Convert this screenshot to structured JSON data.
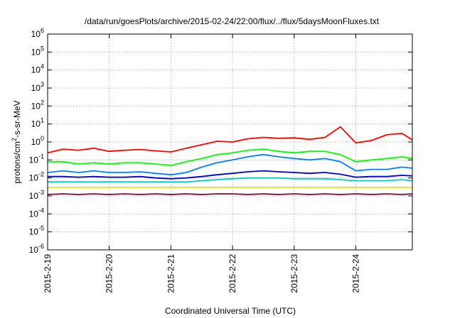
{
  "chart_data": {
    "type": "line",
    "title": "/data/run/goesPlots/archive/2015-02-24/22:00/flux/../flux/5daysMoonFluxes.txt",
    "xlabel": "Coordinated Universal Time (UTC)",
    "ylabel": "protons/cm²-s-sr-MeV",
    "ylabel_parts": {
      "pre": "protons/cm",
      "sup": "2",
      "post": "-s-sr-MeV"
    },
    "yscale": "log",
    "ylim": [
      -6,
      6
    ],
    "yticks": [
      {
        "exp": -6,
        "base": "10",
        "sup": "-6"
      },
      {
        "exp": -5,
        "base": "10",
        "sup": "-5"
      },
      {
        "exp": -4,
        "base": "10",
        "sup": "-4"
      },
      {
        "exp": -3,
        "base": "10",
        "sup": "-3"
      },
      {
        "exp": -2,
        "base": "10",
        "sup": "-2"
      },
      {
        "exp": -1,
        "base": "10",
        "sup": "-1"
      },
      {
        "exp": 0,
        "base": "10",
        "sup": "0"
      },
      {
        "exp": 1,
        "base": "10",
        "sup": "1"
      },
      {
        "exp": 2,
        "base": "10",
        "sup": "2"
      },
      {
        "exp": 3,
        "base": "10",
        "sup": "3"
      },
      {
        "exp": 4,
        "base": "10",
        "sup": "4"
      },
      {
        "exp": 5,
        "base": "10",
        "sup": "5"
      },
      {
        "exp": 6,
        "base": "10",
        "sup": "6"
      }
    ],
    "xlim": [
      "2015-02-19 00:00",
      "2015-02-24 22:00"
    ],
    "xticks": [
      {
        "value": "2015-02-19 00:00",
        "label": "2015-2-19"
      },
      {
        "value": "2015-02-20 00:00",
        "label": "2015-2-20"
      },
      {
        "value": "2015-02-21 00:00",
        "label": "2015-2-21"
      },
      {
        "value": "2015-02-22 00:00",
        "label": "2015-2-22"
      },
      {
        "value": "2015-02-23 00:00",
        "label": "2015-2-23"
      },
      {
        "value": "2015-02-24 00:00",
        "label": "2015-2-24"
      }
    ],
    "grid": true,
    "legend": "none",
    "x": [
      "2015-02-19 00:00",
      "2015-02-19 06:00",
      "2015-02-19 12:00",
      "2015-02-19 18:00",
      "2015-02-20 00:00",
      "2015-02-20 06:00",
      "2015-02-20 12:00",
      "2015-02-20 18:00",
      "2015-02-21 00:00",
      "2015-02-21 06:00",
      "2015-02-21 12:00",
      "2015-02-21 18:00",
      "2015-02-22 00:00",
      "2015-02-22 06:00",
      "2015-02-22 12:00",
      "2015-02-22 18:00",
      "2015-02-23 00:00",
      "2015-02-23 06:00",
      "2015-02-23 12:00",
      "2015-02-23 18:00",
      "2015-02-24 00:00",
      "2015-02-24 06:00",
      "2015-02-24 12:00",
      "2015-02-24 18:00",
      "2015-02-24 22:00"
    ],
    "series": [
      {
        "color": "#ff0000",
        "values": [
          0.25,
          0.4,
          0.35,
          0.45,
          0.3,
          0.35,
          0.38,
          0.32,
          0.28,
          0.45,
          0.7,
          1.1,
          1.0,
          1.5,
          1.8,
          1.6,
          1.7,
          1.4,
          1.8,
          7.0,
          0.9,
          1.2,
          2.5,
          3.0,
          1.3
        ]
      },
      {
        "color": "#00ff00",
        "values": [
          0.08,
          0.08,
          0.06,
          0.07,
          0.06,
          0.07,
          0.07,
          0.06,
          0.05,
          0.08,
          0.12,
          0.2,
          0.25,
          0.35,
          0.4,
          0.3,
          0.25,
          0.3,
          0.3,
          0.2,
          0.08,
          0.1,
          0.12,
          0.15,
          0.12
        ]
      },
      {
        "color": "#0080ff",
        "values": [
          0.02,
          0.025,
          0.02,
          0.025,
          0.02,
          0.02,
          0.022,
          0.018,
          0.015,
          0.02,
          0.04,
          0.07,
          0.1,
          0.15,
          0.2,
          0.15,
          0.12,
          0.1,
          0.12,
          0.08,
          0.025,
          0.03,
          0.03,
          0.04,
          0.035
        ]
      },
      {
        "color": "#0000cc",
        "values": [
          0.012,
          0.012,
          0.011,
          0.012,
          0.011,
          0.011,
          0.012,
          0.01,
          0.009,
          0.01,
          0.012,
          0.015,
          0.018,
          0.022,
          0.025,
          0.022,
          0.02,
          0.018,
          0.02,
          0.016,
          0.011,
          0.012,
          0.012,
          0.014,
          0.013
        ]
      },
      {
        "color": "#00cccc",
        "values": [
          0.006,
          0.006,
          0.006,
          0.006,
          0.006,
          0.006,
          0.006,
          0.006,
          0.006,
          0.006,
          0.007,
          0.008,
          0.009,
          0.01,
          0.01,
          0.01,
          0.009,
          0.009,
          0.009,
          0.008,
          0.007,
          0.007,
          0.007,
          0.008,
          0.007
        ]
      },
      {
        "color": "#e6e600",
        "values": [
          0.003,
          0.003,
          0.003,
          0.003,
          0.003,
          0.003,
          0.003,
          0.003,
          0.003,
          0.003,
          0.003,
          0.003,
          0.003,
          0.003,
          0.003,
          0.003,
          0.003,
          0.003,
          0.003,
          0.003,
          0.003,
          0.003,
          0.003,
          0.003,
          0.003
        ]
      },
      {
        "color": "#800040",
        "values": [
          0.0012,
          0.0013,
          0.0012,
          0.0013,
          0.0012,
          0.0013,
          0.0012,
          0.0013,
          0.0012,
          0.0013,
          0.0012,
          0.0013,
          0.0013,
          0.0012,
          0.0013,
          0.0012,
          0.0013,
          0.0012,
          0.0013,
          0.0012,
          0.0013,
          0.0012,
          0.0013,
          0.0012,
          0.0013
        ]
      }
    ]
  }
}
